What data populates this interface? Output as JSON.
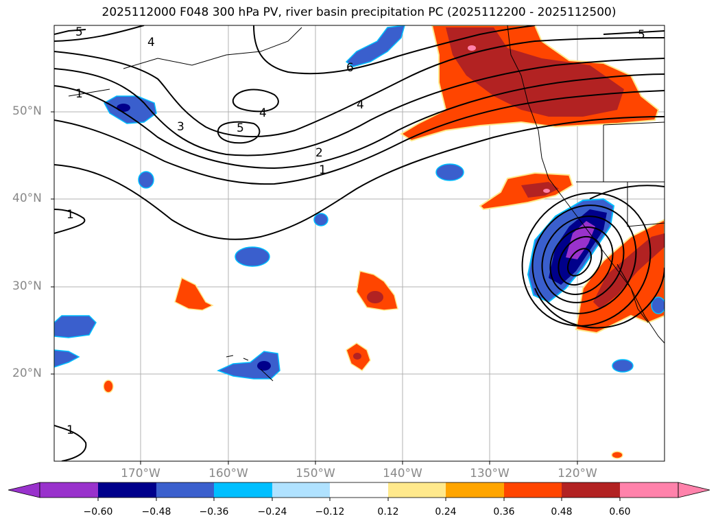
{
  "title": "2025112000 F048 300 hPa PV, river basin precipitation PC (2025112200 - 2025112500)",
  "latitude_labels": [
    "50°N",
    "40°N",
    "30°N",
    "20°N"
  ],
  "longitude_labels": [
    "170°W",
    "160°W",
    "150°W",
    "140°W",
    "130°W",
    "120°W"
  ],
  "colorbar": {
    "ticks": [
      "−0.60",
      "−0.48",
      "−0.36",
      "−0.24",
      "−0.12",
      "0.12",
      "0.24",
      "0.36",
      "0.48",
      "0.60"
    ],
    "colors": [
      "#9932CC",
      "#00008B",
      "#3A5FCD",
      "#00BFFF",
      "#B0E2FF",
      "#FFFFFF",
      "#FFE98C",
      "#FFA500",
      "#FF4500",
      "#B22222",
      "#FF82AB"
    ]
  },
  "contour_labels": [
    "5",
    "4",
    "6",
    "1",
    "3",
    "4",
    "5",
    "4",
    "2",
    "1",
    "1",
    "5",
    "1"
  ]
}
